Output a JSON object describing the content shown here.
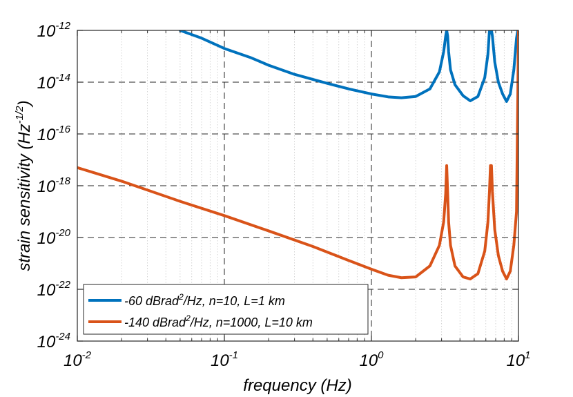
{
  "chart_data": {
    "type": "line",
    "title": "",
    "xlabel": "frequency (Hz)",
    "ylabel_base": "strain sensitivity (Hz",
    "ylabel_exp": "-1/2",
    "ylabel_close": ")",
    "xscale": "log",
    "yscale": "log",
    "xlim": [
      0.01,
      10
    ],
    "ylim": [
      1e-24,
      1e-12
    ],
    "grid": true,
    "xticks": [
      {
        "base": "10",
        "exp": "-2",
        "value": 0.01
      },
      {
        "base": "10",
        "exp": "-1",
        "value": 0.1
      },
      {
        "base": "10",
        "exp": "0",
        "value": 1
      },
      {
        "base": "10",
        "exp": "1",
        "value": 10
      }
    ],
    "yticks": [
      {
        "base": "10",
        "exp": "-24",
        "value": 1e-24
      },
      {
        "base": "10",
        "exp": "-22",
        "value": 1e-22
      },
      {
        "base": "10",
        "exp": "-20",
        "value": 1e-20
      },
      {
        "base": "10",
        "exp": "-18",
        "value": 1e-18
      },
      {
        "base": "10",
        "exp": "-16",
        "value": 1e-16
      },
      {
        "base": "10",
        "exp": "-14",
        "value": 1e-14
      },
      {
        "base": "10",
        "exp": "-12",
        "value": 1e-12
      }
    ],
    "legend_position": "bottom-left",
    "series": [
      {
        "name": "-60 dBrad2/Hz, n=10, L=1 km",
        "legend_pre": "-60 dBrad",
        "legend_exp": "2",
        "legend_post": "/Hz, n=10, L=1 km",
        "color": "#0072BD",
        "x": [
          0.05,
          0.07,
          0.1,
          0.15,
          0.2,
          0.3,
          0.5,
          0.7,
          1.0,
          1.3,
          1.6,
          2.0,
          2.5,
          2.9,
          3.1,
          3.2,
          3.25,
          3.3,
          3.35,
          3.45,
          3.7,
          4.2,
          4.7,
          5.3,
          5.9,
          6.2,
          6.35,
          6.45,
          6.5,
          6.55,
          6.65,
          6.9,
          7.3,
          7.8,
          8.3,
          8.8,
          9.3,
          9.7,
          9.9,
          10.0
        ],
        "y": [
          1e-12,
          5e-13,
          2e-13,
          9e-14,
          4.5e-14,
          2e-14,
          9e-15,
          5.5e-15,
          3.5e-15,
          2.7e-15,
          2.5e-15,
          2.8e-15,
          5.5e-15,
          2.5e-14,
          1.5e-13,
          6e-13,
          1e-12,
          6e-13,
          1.5e-13,
          3e-14,
          8e-15,
          3e-15,
          1.9e-15,
          2.8e-15,
          1.5e-14,
          1.2e-13,
          1e-12,
          1e-12,
          1e-12,
          1e-12,
          6e-13,
          6e-14,
          1e-14,
          3.5e-15,
          1.8e-15,
          3.5e-15,
          3e-14,
          5e-13,
          1e-12,
          1e-12
        ]
      },
      {
        "name": "-140 dBrad2/Hz, n=1000, L=10 km",
        "legend_pre": "-140 dBrad",
        "legend_exp": "2",
        "legend_post": "/Hz, n=1000, L=10 km",
        "color": "#D95319",
        "x": [
          0.01,
          0.02,
          0.05,
          0.1,
          0.2,
          0.4,
          0.7,
          1.0,
          1.3,
          1.6,
          2.0,
          2.5,
          2.9,
          3.1,
          3.2,
          3.25,
          3.3,
          3.35,
          3.45,
          3.7,
          4.2,
          4.7,
          5.3,
          5.9,
          6.2,
          6.35,
          6.45,
          6.5,
          6.55,
          6.65,
          6.9,
          7.3,
          7.8,
          8.3,
          8.8,
          9.3,
          9.7,
          9.9,
          10.0
        ],
        "y": [
          5e-18,
          1.5e-18,
          2.5e-19,
          7e-20,
          1.8e-20,
          4.5e-21,
          1.3e-21,
          6e-22,
          3.5e-22,
          2.8e-22,
          3e-22,
          8e-22,
          5e-21,
          4e-20,
          5e-19,
          6e-18,
          5e-19,
          4e-20,
          5e-21,
          8e-22,
          3e-22,
          2.5e-22,
          4e-22,
          3e-21,
          4e-20,
          6e-19,
          6e-18,
          6e-18,
          6e-18,
          6e-19,
          2e-20,
          2e-21,
          5e-22,
          2.5e-22,
          5e-22,
          5e-21,
          1e-19,
          3e-15,
          1e-12
        ]
      }
    ]
  }
}
